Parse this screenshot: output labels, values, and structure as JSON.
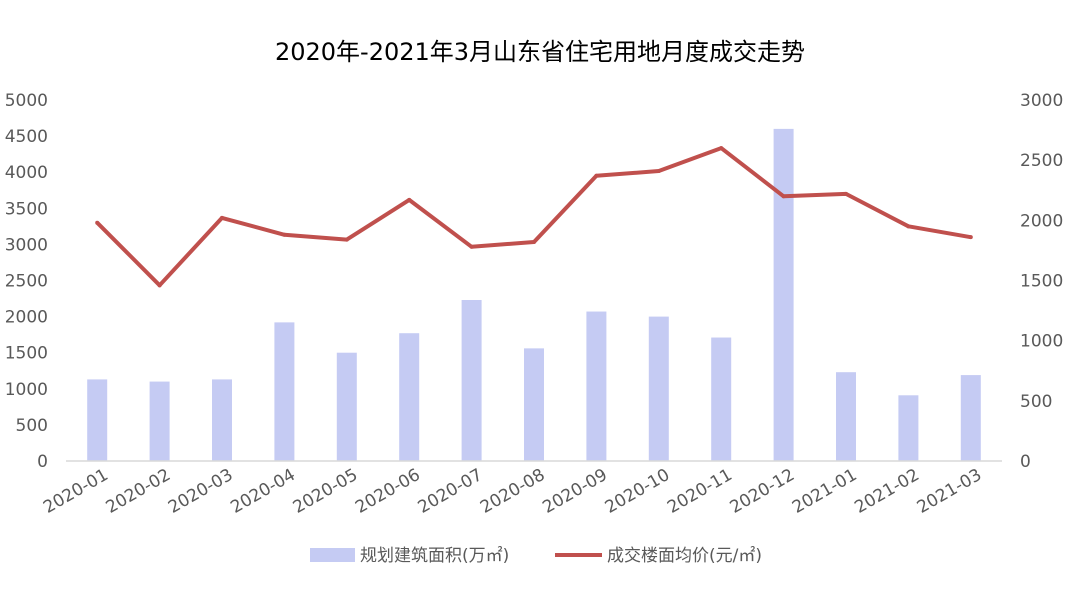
{
  "chart_data": {
    "type": "bar+line",
    "title": "2020年-2021年3月山东省住宅用地月度成交走势",
    "categories": [
      "2020-01",
      "2020-02",
      "2020-03",
      "2020-04",
      "2020-05",
      "2020-06",
      "2020-07",
      "2020-08",
      "2020-09",
      "2020-10",
      "2020-11",
      "2020-12",
      "2021-01",
      "2021-02",
      "2021-03"
    ],
    "series": [
      {
        "name": "规划建筑面积(万㎡)",
        "type": "bar",
        "axis": "left",
        "color": "#c5cbf3",
        "values": [
          1130,
          1100,
          1130,
          1920,
          1500,
          1770,
          2230,
          1560,
          2070,
          2000,
          1710,
          4600,
          1230,
          910,
          1190
        ]
      },
      {
        "name": "成交楼面均价(元/㎡)",
        "type": "line",
        "axis": "right",
        "color": "#c0504d",
        "values": [
          1980,
          1460,
          2020,
          1880,
          1840,
          2170,
          1780,
          1820,
          2370,
          2410,
          2600,
          2200,
          2220,
          1950,
          1860
        ]
      }
    ],
    "y_left": {
      "min": 0,
      "max": 5000,
      "step": 500
    },
    "y_right": {
      "min": 0,
      "max": 3000,
      "step": 500
    },
    "legend_position": "bottom",
    "grid": false
  }
}
